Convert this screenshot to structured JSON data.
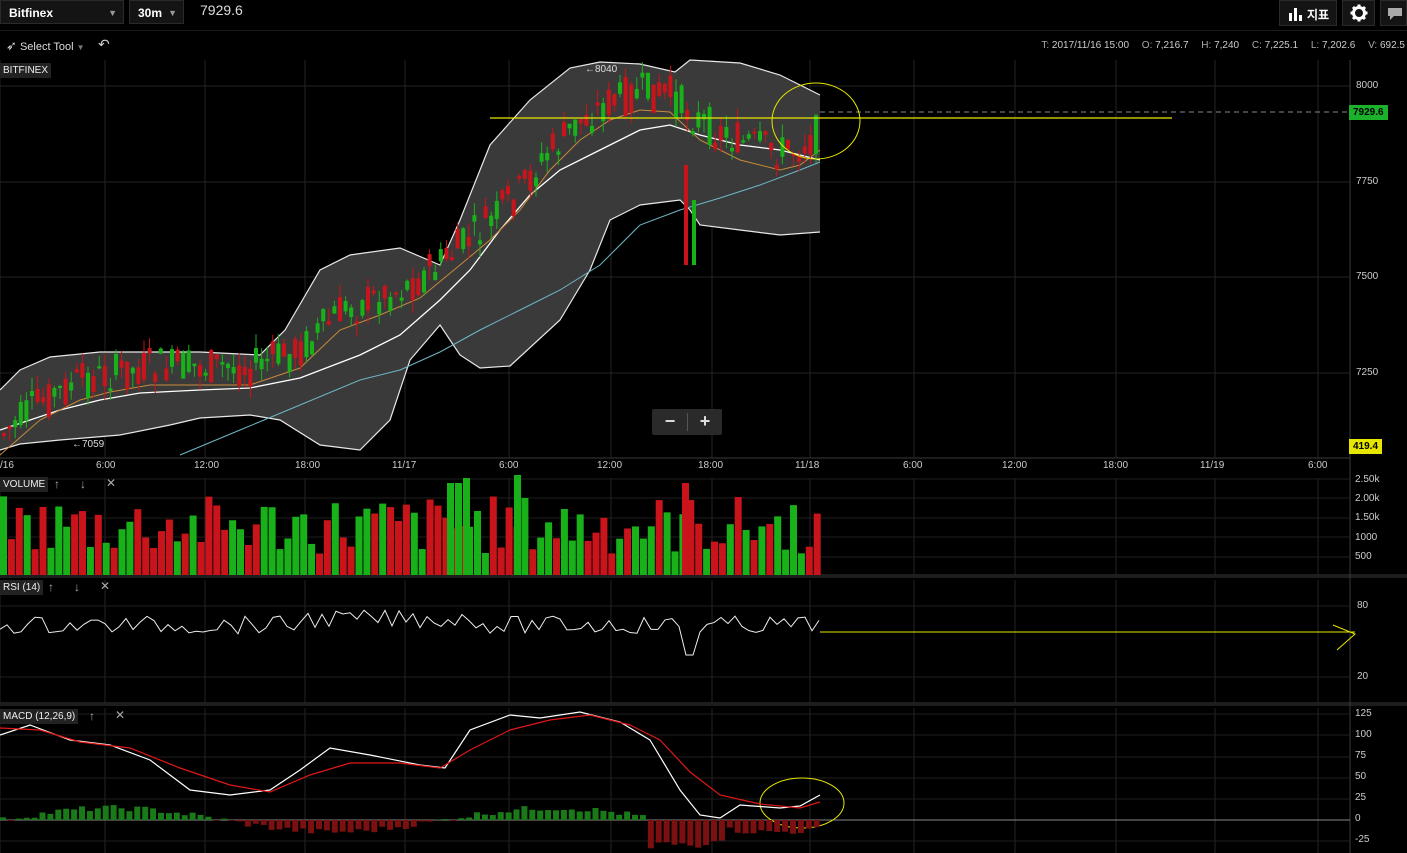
{
  "header": {
    "exchange": "Bitfinex",
    "interval": "30m",
    "last_price": "7929.6",
    "indicators_label": "지표"
  },
  "toolbar": {
    "tool_label": "Select Tool"
  },
  "ohlc": {
    "t_key": "T:",
    "t": "2017/11/16 15:00",
    "o_key": "O:",
    "o": "7,216.7",
    "h_key": "H:",
    "h": "7,240",
    "c_key": "C:",
    "c": "7,225.1",
    "l_key": "L:",
    "l": "7,202.6",
    "v_key": "V:",
    "v": "692.5"
  },
  "chart": {
    "symbol_label": "BITFINEX",
    "high_marker": "←8040",
    "low_marker": "←7059",
    "price_axis": [
      "8000",
      "7750",
      "7500",
      "7250"
    ],
    "time_axis": [
      "/16",
      "6:00",
      "12:00",
      "18:00",
      "11/17",
      "6:00",
      "12:00",
      "18:00",
      "11/18",
      "6:00",
      "12:00",
      "18:00",
      "11/19",
      "6:00"
    ],
    "current_price_tag": "7929.6",
    "volume_tag": "419.4",
    "colors": {
      "up": "#19b119",
      "down": "#c8141a",
      "yellow": "#e6e600",
      "ma_slow": "#6fb6c8",
      "ma_fast": "#c88a3a",
      "band": "#3a3a3a",
      "tag_green": "#1bb12a",
      "tag_yellow": "#e6e600"
    }
  },
  "volume_panel": {
    "label": "VOLUME",
    "axis": [
      "2.50k",
      "2.00k",
      "1.50k",
      "1000",
      "500"
    ]
  },
  "rsi_panel": {
    "label": "RSI (14)",
    "axis": [
      "80",
      "20"
    ]
  },
  "macd_panel": {
    "label": "MACD (12,26,9)",
    "axis": [
      "125",
      "100",
      "75",
      "50",
      "25",
      "0",
      "-25"
    ]
  }
}
